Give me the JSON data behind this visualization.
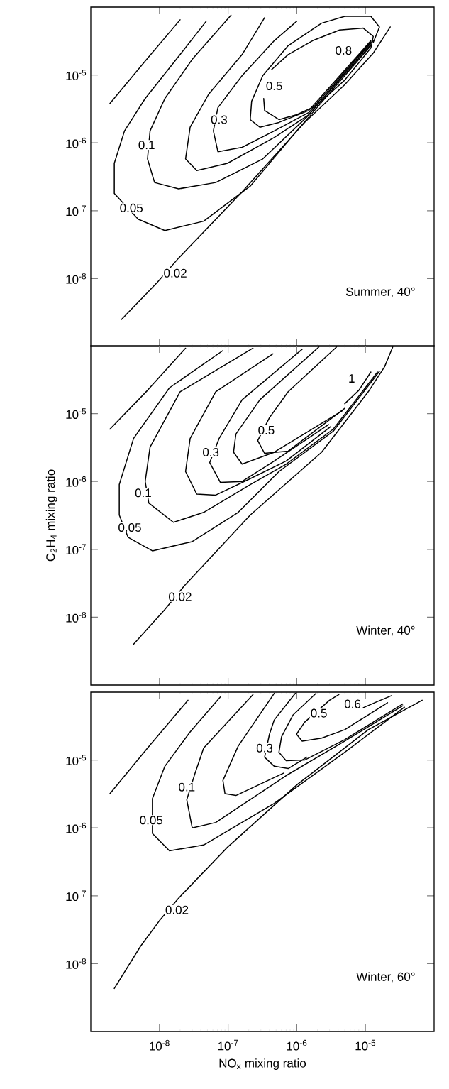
{
  "chart_data": [
    {
      "type": "line",
      "log": "xy",
      "line_style": "solid",
      "marker": "none",
      "tick_labels": "y",
      "xlim": [
        1e-09,
        0.0001
      ],
      "ylim": [
        1e-09,
        0.0001
      ],
      "xticks": [
        {
          "value": 1e-08,
          "label": null
        },
        {
          "value": 1e-07,
          "label": null
        },
        {
          "value": 1e-06,
          "label": null
        },
        {
          "value": 1e-05,
          "label": null
        }
      ],
      "yticks": [
        {
          "value": 1e-05,
          "label": "10$^{-5}$"
        },
        {
          "value": 1e-06,
          "label": "10$^{-6}$"
        },
        {
          "value": 1e-07,
          "label": "10$^{-7}$"
        },
        {
          "value": 1e-08,
          "label": "10$^{-8}$"
        }
      ],
      "series": [
        {
          "color": "#000000",
          "x": [
            1.9e-09,
            6.2e-09,
            2e-08,
            null,
            2.8e-09,
            9.2e-09,
            1.9e-08,
            1.6e-07,
            1.3e-06,
            5e-06,
            1.3e-05,
            2.3e-05
          ],
          "values": [
            3.8e-06,
            1.6e-05,
            6.5e-05,
            null,
            2.5e-09,
            8.7e-09,
            2e-08,
            1.9e-07,
            2e-06,
            7.2e-06,
            2.1e-05,
            5.1e-05
          ]
        },
        {
          "color": "#000000",
          "x": [
            4.8e-08,
            2e-08,
            6.2e-09,
            3.1e-09,
            2.2e-09,
            2.2e-09,
            4.9e-09,
            1.2e-08,
            4.4e-08,
            2.1e-07,
            1e-06,
            1.2e-05
          ],
          "values": [
            6.2e-05,
            2e-05,
            4.5e-06,
            1.5e-06,
            5e-07,
            1.8e-07,
            7.5e-08,
            5.1e-08,
            7e-08,
            2.3e-07,
            1.5e-06,
            2.7e-05
          ]
        },
        {
          "color": "#000000",
          "x": [
            1.1e-07,
            3e-08,
            1.2e-08,
            7.3e-09,
            6.7e-09,
            8.5e-09,
            1.9e-08,
            6.6e-08,
            3.2e-07,
            1.4e-06,
            1.2e-05
          ],
          "values": [
            7.6e-05,
            1.7e-05,
            4.5e-06,
            1.5e-06,
            5.8e-07,
            2.6e-07,
            2.1e-07,
            2.6e-07,
            5.8e-07,
            2.4e-06,
            2.8e-05
          ]
        },
        {
          "color": "#000000",
          "x": [
            3.4e-07,
            1.6e-07,
            5.2e-08,
            2.8e-08,
            2.4e-08,
            3.5e-08,
            9.8e-08,
            4.7e-07,
            1.5e-06,
            1.2e-05
          ],
          "values": [
            7e-05,
            2e-05,
            5.2e-06,
            1.7e-06,
            5.8e-07,
            3.9e-07,
            5e-07,
            1.2e-06,
            2.6e-06,
            3e-05
          ]
        },
        {
          "color": "#000000",
          "x": [
            1e-06,
            4.7e-07,
            1.6e-07,
            7.1e-08,
            6.1e-08,
            7.1e-08,
            1.6e-07,
            4.7e-07,
            1.5e-06,
            1.2e-05
          ],
          "values": [
            6.2e-05,
            3.2e-05,
            9.8e-06,
            3.3e-06,
            1.5e-06,
            7.4e-07,
            8.6e-07,
            1.5e-06,
            2.8e-06,
            3.1e-05
          ]
        },
        {
          "color": "#000000",
          "x": [
            1.3e-05,
            1.6e-05,
            1.2e-05,
            5e-06,
            2.3e-06,
            7.5e-07,
            3.2e-07,
            2.2e-07,
            2.1e-07,
            2.9e-07,
            5.5e-07,
            1.5e-06,
            1.2e-05
          ],
          "values": [
            3e-05,
            5.1e-05,
            7.3e-05,
            7.3e-05,
            5.8e-05,
            2.7e-05,
            9.8e-06,
            4.1e-06,
            2.2e-06,
            1.7e-06,
            2e-06,
            3e-06,
            3.2e-05
          ]
        },
        {
          "color": "#000000",
          "x": [
            3.3e-07,
            3.4e-07,
            5.5e-07,
            1e-06,
            1.9e-06,
            5e-06,
            1.2e-05,
            1.3e-05,
            9.3e-06,
            4.2e-06,
            1.7e-06,
            7.5e-07,
            4.3e-07
          ],
          "values": [
            4.5e-06,
            3e-06,
            2.2e-06,
            2.6e-06,
            3.5e-06,
            8.4e-06,
            2.5e-05,
            3.7e-05,
            4.9e-05,
            4.6e-05,
            3.2e-05,
            2e-05,
            1.2e-05
          ]
        },
        {
          "color": "#000000",
          "x": [
            7.4e-06,
            1e-05,
            1.3e-05
          ],
          "values": [
            1.8e-05,
            2.4e-05,
            3.2e-05
          ]
        }
      ],
      "annotations": [
        "Summer, 40°",
        {
          "text": "0.02",
          "x": 1.7e-08,
          "y": 1.2e-08
        },
        {
          "text": "0.05",
          "x": 3.9e-09,
          "y": 1.1e-07
        },
        {
          "text": "0.1",
          "x": 6.5e-09,
          "y": 9.3e-07
        },
        {
          "text": "0.3",
          "x": 7.4e-08,
          "y": 2.2e-06
        },
        {
          "text": "0.5",
          "x": 4.7e-07,
          "y": 6.9e-06
        },
        {
          "text": "0.8",
          "x": 4.8e-06,
          "y": 2.3e-05
        }
      ]
    },
    {
      "type": "line",
      "log": "xy",
      "line_style": "solid",
      "marker": "none",
      "tick_labels": "y",
      "ylabel": "C$_{2}$H$_{4}$ mixing ratio",
      "xlim": [
        1e-09,
        0.0001
      ],
      "ylim": [
        1e-09,
        0.0001
      ],
      "xticks": [
        {
          "value": 1e-08,
          "label": null
        },
        {
          "value": 1e-07,
          "label": null
        },
        {
          "value": 1e-06,
          "label": null
        },
        {
          "value": 1e-05,
          "label": null
        }
      ],
      "yticks": [
        {
          "value": 1e-05,
          "label": "10$^{-5}$"
        },
        {
          "value": 1e-06,
          "label": "10$^{-6}$"
        },
        {
          "value": 1e-07,
          "label": "10$^{-7}$"
        },
        {
          "value": 1e-08,
          "label": "10$^{-8}$"
        }
      ],
      "series": [
        {
          "color": "#000000",
          "x": [
            1.9e-09,
            6.7e-09,
            2.4e-08,
            null,
            4.2e-09,
            1.2e-08,
            2.3e-08,
            2.1e-07,
            2.3e-06,
            1.1e-05,
            1.9e-05,
            2.5e-05
          ],
          "values": [
            5.9e-06,
            2.2e-05,
            9.2e-05,
            null,
            4e-09,
            1.3e-08,
            2.9e-08,
            3.2e-07,
            2.7e-06,
            2.1e-05,
            4.9e-05,
            9.6e-05
          ]
        },
        {
          "color": "#000000",
          "x": [
            8.4e-08,
            1.4e-08,
            4.2e-09,
            2.6e-09,
            2.6e-09,
            3.5e-09,
            7.9e-09,
            3e-08,
            1.4e-07,
            5.5e-07,
            3.4e-06,
            1.6e-05
          ],
          "values": [
            8.5e-05,
            2.4e-05,
            4.3e-06,
            9e-07,
            3.2e-07,
            1.5e-07,
            9.5e-08,
            1.3e-07,
            3.5e-07,
            1.4e-06,
            5.5e-06,
            4.2e-05
          ]
        },
        {
          "color": "#000000",
          "x": [
            2.3e-07,
            2e-08,
            7.3e-09,
            6.2e-09,
            7e-09,
            1.6e-08,
            4.4e-08,
            2.1e-07,
            7e-07,
            3.4e-06,
            1.5e-05
          ],
          "values": [
            9.2e-05,
            2.1e-05,
            3.2e-06,
            1e-06,
            4.8e-07,
            2.5e-07,
            3.5e-07,
            9e-07,
            1.8e-06,
            5.9e-06,
            4.1e-05
          ]
        },
        {
          "color": "#000000",
          "x": [
            4.5e-07,
            6.6e-08,
            2.8e-08,
            2.4e-08,
            3.5e-08,
            6.6e-08,
            2.1e-07,
            7e-07,
            3.1e-06
          ],
          "values": [
            7.6e-05,
            2.1e-05,
            4.3e-06,
            1.4e-06,
            6.5e-07,
            6.3e-07,
            1.1e-06,
            2e-06,
            6.4e-06
          ]
        },
        {
          "color": "#000000",
          "x": [
            1.2e-06,
            1.6e-07,
            7.4e-08,
            5.4e-08,
            7.7e-08,
            1.6e-07,
            4.7e-07,
            2.9e-06
          ],
          "values": [
            8.9e-05,
            1.6e-05,
            4.3e-06,
            1.9e-06,
            9.7e-07,
            1e-06,
            2e-06,
            6.9e-06
          ]
        },
        {
          "color": "#000000",
          "x": [
            2.1e-06,
            2.9e-07,
            1.3e-07,
            1.2e-07,
            1.6e-07,
            4.7e-07,
            4.6e-06
          ],
          "values": [
            9.6e-05,
            1.6e-05,
            5e-06,
            2.7e-06,
            1.8e-06,
            2.7e-06,
            1.1e-05
          ]
        },
        {
          "color": "#000000",
          "x": [
            3.8e-06,
            7.5e-07,
            4e-07,
            2.7e-07,
            3.4e-07,
            7.5e-07,
            5e-06
          ],
          "values": [
            9.6e-05,
            2.1e-05,
            8.7e-06,
            4e-06,
            2.6e-06,
            2.8e-06,
            1.2e-05
          ]
        },
        {
          "color": "#000000",
          "x": [
            1.2e-05,
            8e-06,
            5e-06
          ],
          "values": [
            4.1e-05,
            2.2e-05,
            1.4e-05
          ]
        }
      ],
      "annotations": [
        "Winter, 40°",
        {
          "text": "0.02",
          "x": 2e-08,
          "y": 2e-08
        },
        {
          "text": "0.05",
          "x": 3.7e-09,
          "y": 2.1e-07
        },
        {
          "text": "0.1",
          "x": 5.8e-09,
          "y": 6.8e-07
        },
        {
          "text": "0.3",
          "x": 5.6e-08,
          "y": 2.7e-06
        },
        {
          "text": "0.5",
          "x": 3.6e-07,
          "y": 5.7e-06
        },
        {
          "text": "1",
          "x": 6.3e-06,
          "y": 3.3e-05
        }
      ]
    },
    {
      "type": "line",
      "log": "xy",
      "line_style": "solid",
      "marker": "none",
      "xlabel": "NO$_{x}$ mixing ratio",
      "xlim": [
        1e-09,
        0.0001
      ],
      "ylim": [
        1e-09,
        0.0001
      ],
      "xticks": [
        {
          "value": 1e-08,
          "label": "10$^{-8}$"
        },
        {
          "value": 1e-07,
          "label": "10$^{-7}$"
        },
        {
          "value": 1e-06,
          "label": "10$^{-6}$"
        },
        {
          "value": 1e-05,
          "label": "10$^{-5}$"
        }
      ],
      "yticks": [
        {
          "value": 1e-05,
          "label": "10$^{-5}$"
        },
        {
          "value": 1e-06,
          "label": "10$^{-6}$"
        },
        {
          "value": 1e-07,
          "label": "10$^{-7}$"
        },
        {
          "value": 1e-08,
          "label": "10$^{-8}$"
        }
      ],
      "series": [
        {
          "color": "#000000",
          "x": [
            1.9e-09,
            6.7e-09,
            2.6e-08,
            null,
            2.2e-09,
            5.3e-09,
            1e-08,
            1.9e-08,
            9.8e-08,
            1e-06,
            1.1e-05,
            6.7e-05
          ],
          "values": [
            3.2e-06,
            1.5e-05,
            7.6e-05,
            null,
            4.3e-09,
            1.8e-08,
            4.3e-08,
            9.2e-08,
            5.2e-07,
            4.3e-06,
            2.8e-05,
            7.6e-05
          ]
        },
        {
          "color": "#000000",
          "x": [
            7.7e-08,
            2.8e-08,
            1.2e-08,
            7.9e-09,
            7.9e-09,
            1.4e-08,
            4.4e-08,
            4.7e-07,
            5e-06,
            3.7e-05
          ],
          "values": [
            8.5e-05,
            2.6e-05,
            8.1e-06,
            2.7e-06,
            8.3e-07,
            4.6e-07,
            5.6e-07,
            2.3e-06,
            1.3e-05,
            6e-05
          ]
        },
        {
          "color": "#000000",
          "x": [
            2.3e-07,
            4.4e-08,
            3.3e-08,
            2.5e-08,
            3e-08,
            6.6e-08,
            7e-07,
            5e-06,
            3.5e-05
          ],
          "values": [
            9.2e-05,
            1.5e-05,
            6.4e-06,
            2.6e-06,
            1e-06,
            1.2e-06,
            5.9e-06,
            1.9e-05,
            6.3e-05
          ]
        },
        {
          "color": "#000000",
          "x": [
            4.7e-07,
            1.4e-07,
            8.4e-08,
            9e-08,
            1.3e-07,
            6.4e-07
          ],
          "values": [
            9.6e-05,
            1.6e-05,
            5e-06,
            3.2e-06,
            3e-06,
            6.4e-06
          ]
        },
        {
          "color": "#000000",
          "x": [
            9.5e-07,
            4.7e-07,
            4e-07,
            3.4e-07,
            4.7e-07,
            7.5e-07,
            1.4e-06
          ],
          "values": [
            9.6e-05,
            3.9e-05,
            2.4e-05,
            1.1e-05,
            8.1e-06,
            7.5e-06,
            1.1e-05
          ]
        },
        {
          "color": "#000000",
          "x": [
            1.9e-06,
            8.8e-07,
            6e-07,
            5.5e-07,
            7e-07,
            1.3e-06,
            5e-06,
            3.5e-05
          ],
          "values": [
            9.6e-05,
            4.6e-05,
            2.2e-05,
            1.3e-05,
            9.8e-06,
            1e-05,
            2e-05,
            6.7e-05
          ]
        },
        {
          "color": "#000000",
          "x": [
            4.1e-06,
            3e-06,
            1.3e-06,
            9.9e-07,
            1.2e-06,
            2.3e-06,
            5e-06,
            2.1e-05
          ],
          "values": [
            9.2e-05,
            7.6e-05,
            3.6e-05,
            2.4e-05,
            1.9e-05,
            2.1e-05,
            2.8e-05,
            7e-05
          ]
        },
        {
          "color": "#000000",
          "x": [
            9.3e-06,
            1.5e-05,
            2.4e-05
          ],
          "values": [
            5.9e-05,
            7.3e-05,
            8.9e-05
          ]
        }
      ],
      "annotations": [
        "Winter, 60°",
        {
          "text": "0.02",
          "x": 1.8e-08,
          "y": 6.2e-08
        },
        {
          "text": "0.05",
          "x": 7.6e-09,
          "y": 1.3e-06
        },
        {
          "text": "0.1",
          "x": 2.5e-08,
          "y": 4e-06
        },
        {
          "text": "0.3",
          "x": 3.4e-07,
          "y": 1.5e-05
        },
        {
          "text": "0.5",
          "x": 2.1e-06,
          "y": 4.9e-05
        },
        {
          "text": "0.6",
          "x": 6.5e-06,
          "y": 6.7e-05
        }
      ]
    }
  ]
}
